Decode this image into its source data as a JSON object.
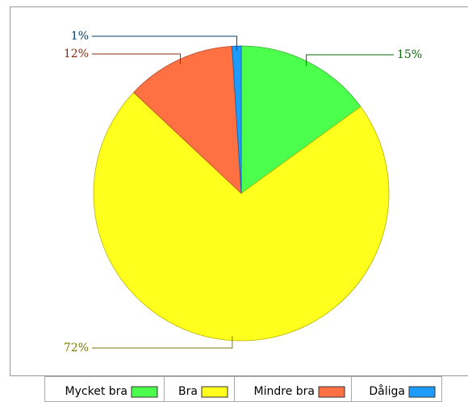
{
  "chart_data": {
    "type": "pie",
    "categories": [
      "Mycket bra",
      "Bra",
      "Mindre bra",
      "Dåliga"
    ],
    "values": [
      15,
      72,
      12,
      1
    ],
    "value_labels": [
      "15%",
      "72%",
      "12%",
      "1%"
    ],
    "colors": [
      "#4cff4c",
      "#ffff1e",
      "#ff7043",
      "#1e9bff"
    ]
  }
}
